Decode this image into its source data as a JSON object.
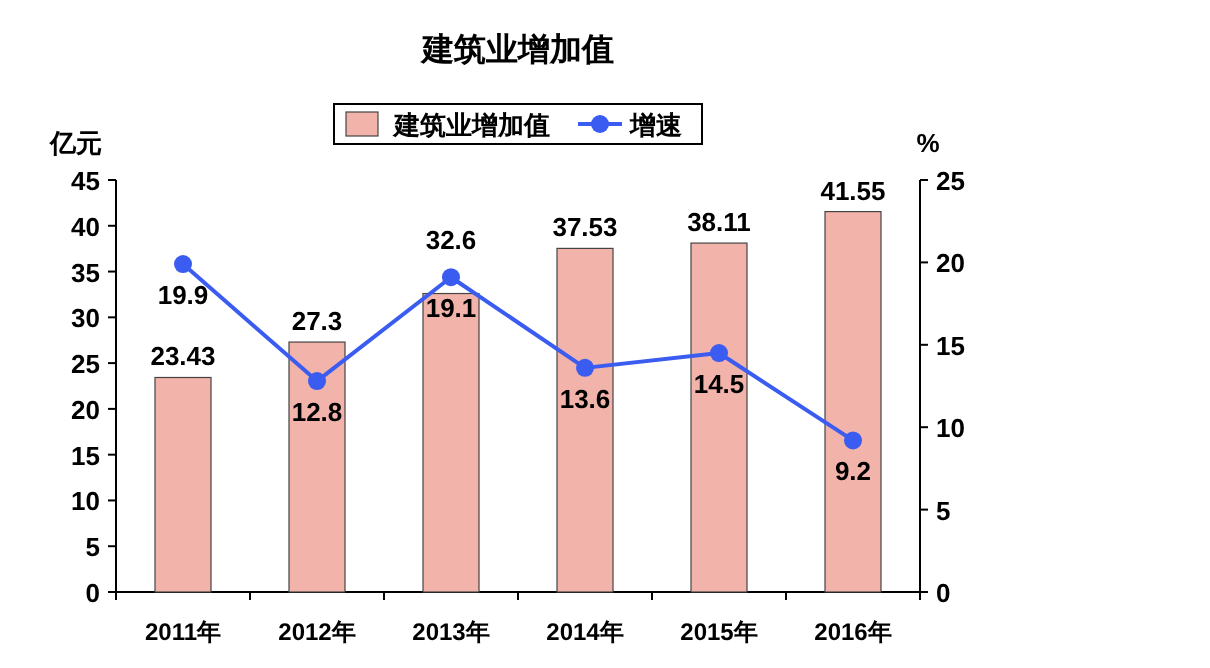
{
  "chart_data": {
    "type": "bar",
    "title": "建筑业增加值",
    "ylabel": "亿元",
    "y2label": "%",
    "categories": [
      "2011年",
      "2012年",
      "2013年",
      "2014年",
      "2015年",
      "2016年"
    ],
    "series": [
      {
        "name": "建筑业增加值",
        "color": "#f2b3ab",
        "values": [
          23.43,
          27.3,
          32.6,
          37.53,
          38.11,
          41.55
        ]
      },
      {
        "name": "增速",
        "type": "line",
        "axis": "y2",
        "color": "#3b5cf0",
        "values": [
          19.9,
          12.8,
          19.1,
          13.6,
          14.5,
          9.2
        ]
      }
    ],
    "ylim": [
      0,
      45
    ],
    "yticks": [
      0,
      5,
      10,
      15,
      20,
      25,
      30,
      35,
      40,
      45
    ],
    "y2lim": [
      0,
      25
    ],
    "y2ticks": [
      0,
      5,
      10,
      15,
      20,
      25
    ],
    "legend": "top",
    "marker": "circle",
    "data_labels": true
  }
}
